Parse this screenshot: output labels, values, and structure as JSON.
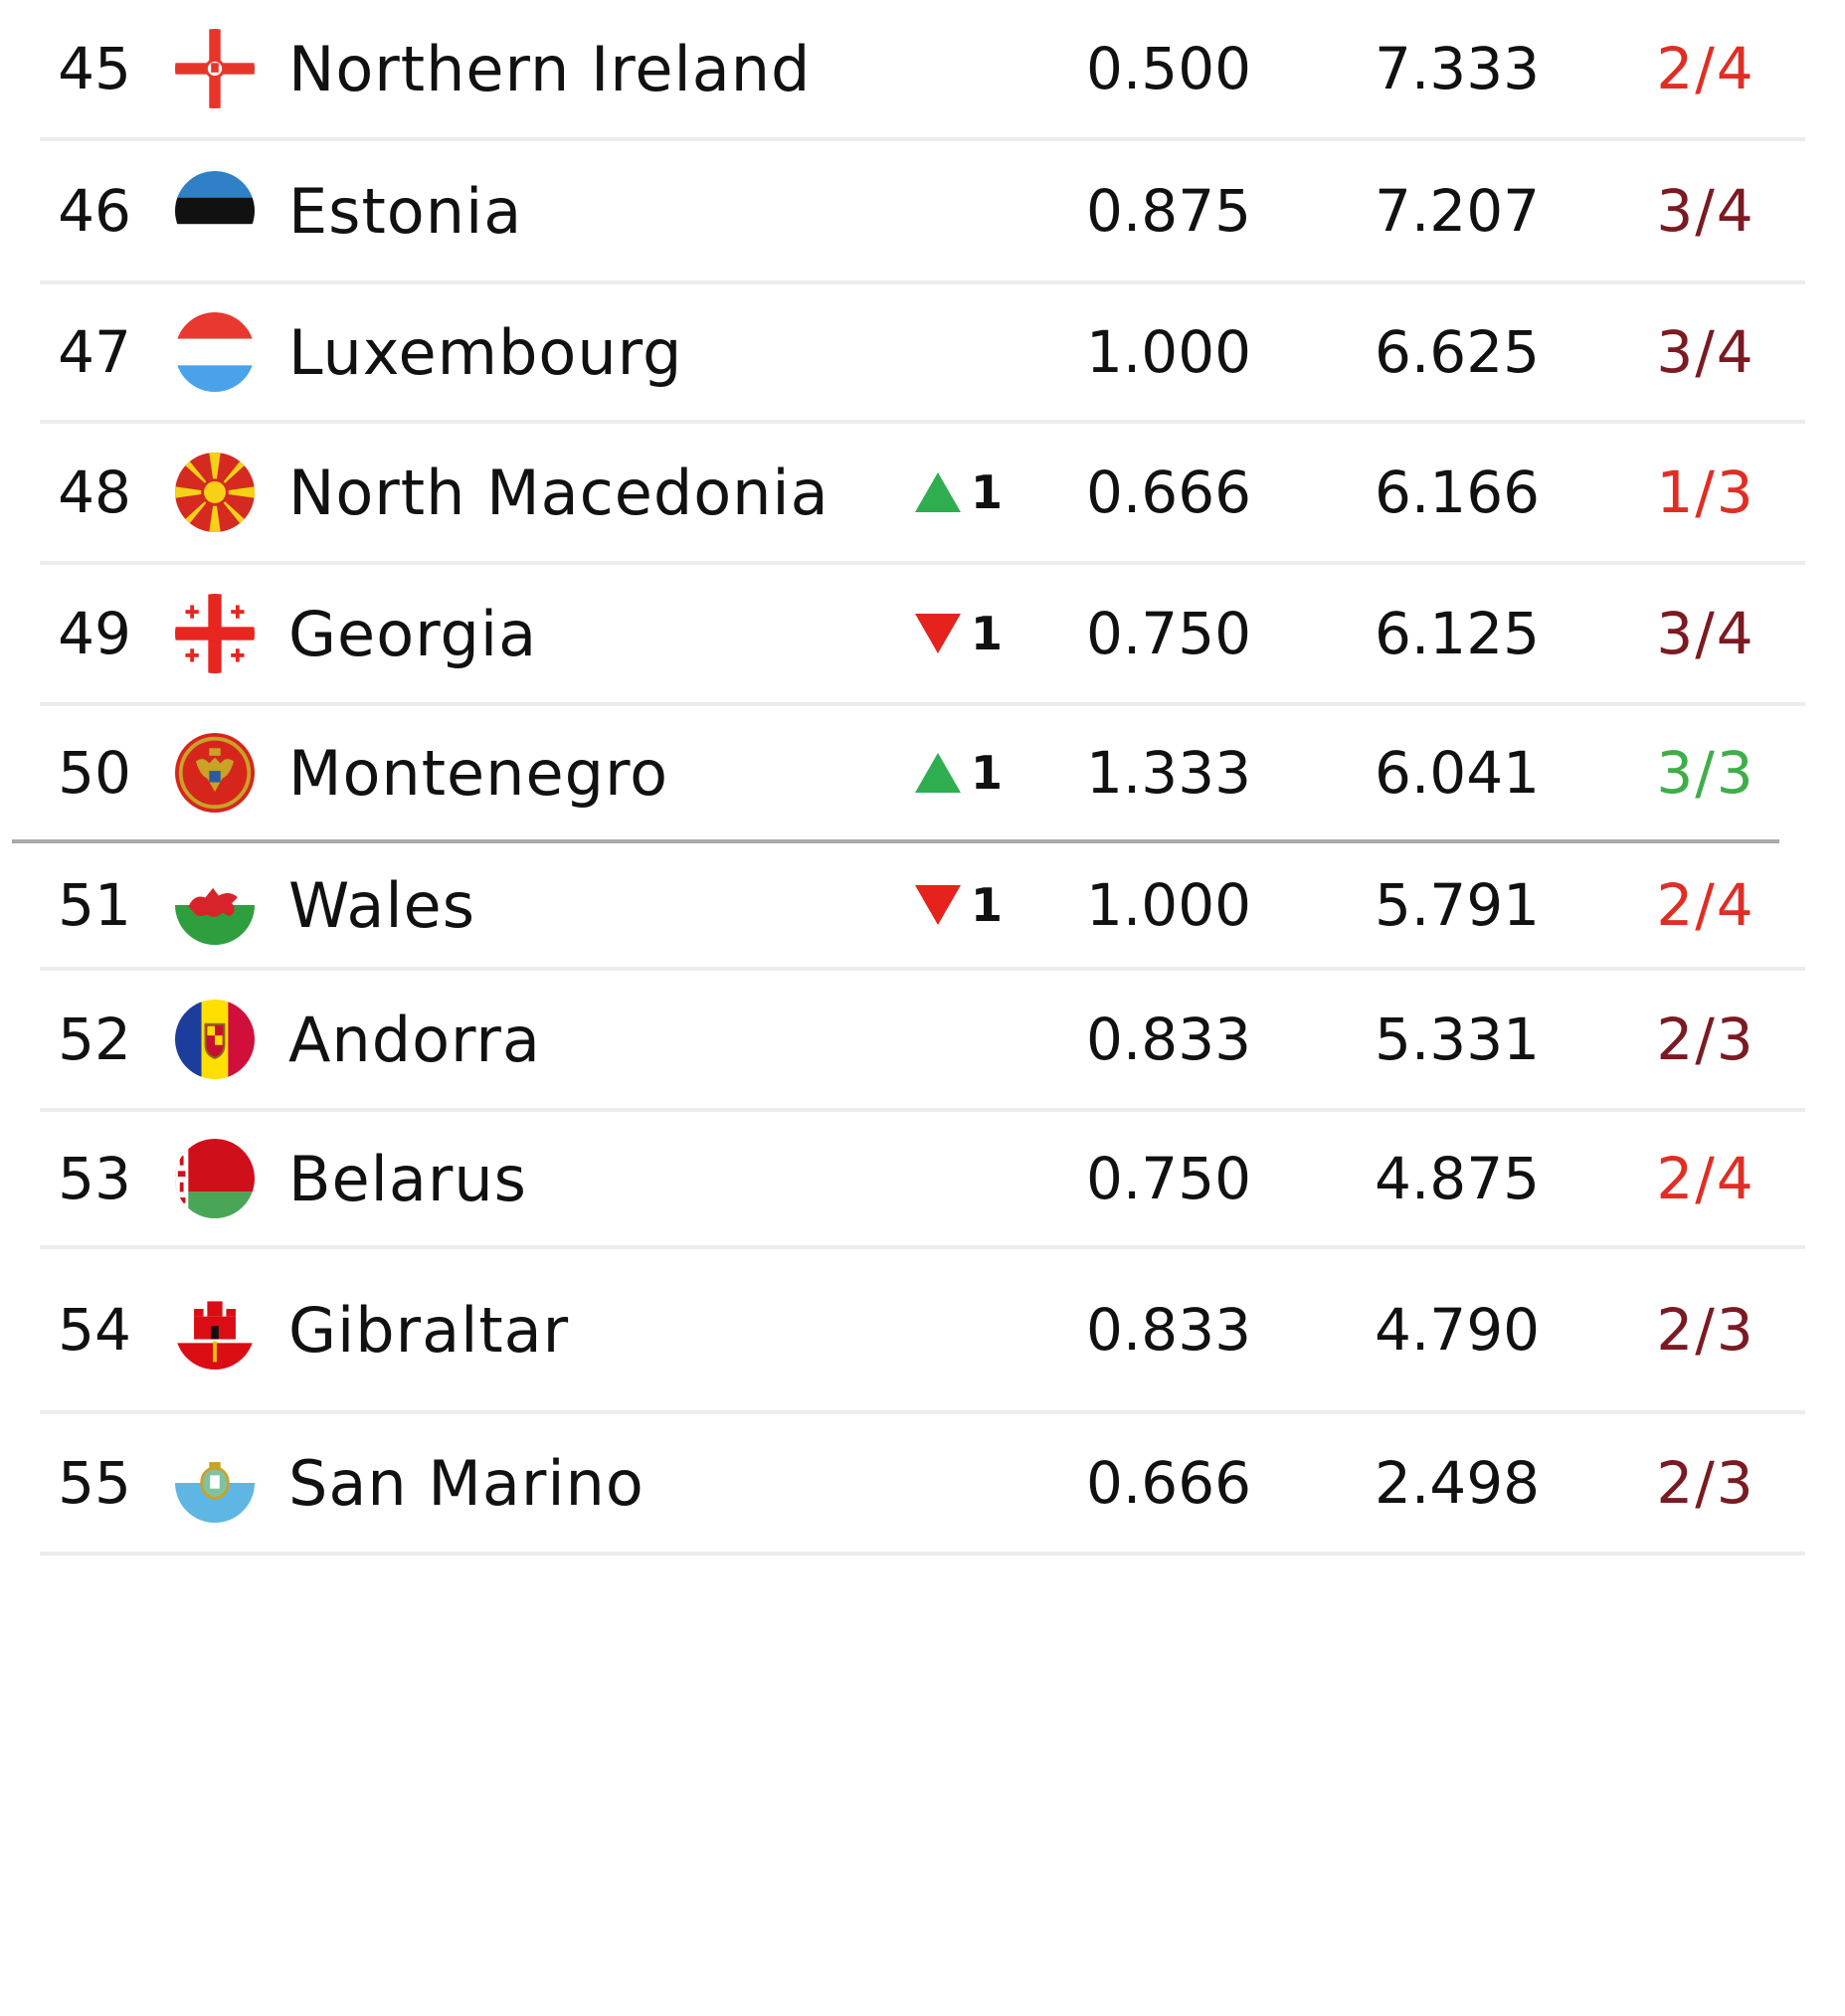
{
  "colors": {
    "text": "#111111",
    "up": "#2fae4f",
    "down": "#e5221b",
    "clubs_red": "#e02e24",
    "clubs_dark": "#7b1a22",
    "clubs_green": "#3fae49",
    "divider": "#ececec",
    "cutline": "#a9a9a9"
  },
  "rows": [
    {
      "rank": "45",
      "team": "Northern Ireland",
      "flag_icon": "northern-ireland-flag-icon",
      "movement": null,
      "coefficient": "0.500",
      "total": "7.333",
      "clubs": "2/4",
      "clubs_color": "clubs_red"
    },
    {
      "rank": "46",
      "team": "Estonia",
      "flag_icon": "estonia-flag-icon",
      "movement": null,
      "coefficient": "0.875",
      "total": "7.207",
      "clubs": "3/4",
      "clubs_color": "clubs_dark"
    },
    {
      "rank": "47",
      "team": "Luxembourg",
      "flag_icon": "luxembourg-flag-icon",
      "movement": null,
      "coefficient": "1.000",
      "total": "6.625",
      "clubs": "3/4",
      "clubs_color": "clubs_dark"
    },
    {
      "rank": "48",
      "team": "North Macedonia",
      "flag_icon": "north-macedonia-flag-icon",
      "movement": {
        "dir": "up",
        "value": "1"
      },
      "coefficient": "0.666",
      "total": "6.166",
      "clubs": "1/3",
      "clubs_color": "clubs_red"
    },
    {
      "rank": "49",
      "team": "Georgia",
      "flag_icon": "georgia-flag-icon",
      "movement": {
        "dir": "down",
        "value": "1"
      },
      "coefficient": "0.750",
      "total": "6.125",
      "clubs": "3/4",
      "clubs_color": "clubs_dark"
    },
    {
      "rank": "50",
      "team": "Montenegro",
      "flag_icon": "montenegro-flag-icon",
      "movement": {
        "dir": "up",
        "value": "1"
      },
      "coefficient": "1.333",
      "total": "6.041",
      "clubs": "3/3",
      "clubs_color": "clubs_green",
      "cutline": true
    },
    {
      "rank": "51",
      "team": "Wales",
      "flag_icon": "wales-flag-icon",
      "movement": {
        "dir": "down",
        "value": "1"
      },
      "coefficient": "1.000",
      "total": "5.791",
      "clubs": "2/4",
      "clubs_color": "clubs_red"
    },
    {
      "rank": "52",
      "team": "Andorra",
      "flag_icon": "andorra-flag-icon",
      "movement": null,
      "coefficient": "0.833",
      "total": "5.331",
      "clubs": "2/3",
      "clubs_color": "clubs_dark"
    },
    {
      "rank": "53",
      "team": "Belarus",
      "flag_icon": "belarus-flag-icon",
      "movement": null,
      "coefficient": "0.750",
      "total": "4.875",
      "clubs": "2/4",
      "clubs_color": "clubs_red"
    },
    {
      "rank": "54",
      "team": "Gibraltar",
      "flag_icon": "gibraltar-flag-icon",
      "movement": null,
      "coefficient": "0.833",
      "total": "4.790",
      "clubs": "2/3",
      "clubs_color": "clubs_dark"
    },
    {
      "rank": "55",
      "team": "San Marino",
      "flag_icon": "san-marino-flag-icon",
      "movement": null,
      "coefficient": "0.666",
      "total": "2.498",
      "clubs": "2/3",
      "clubs_color": "clubs_dark"
    }
  ]
}
